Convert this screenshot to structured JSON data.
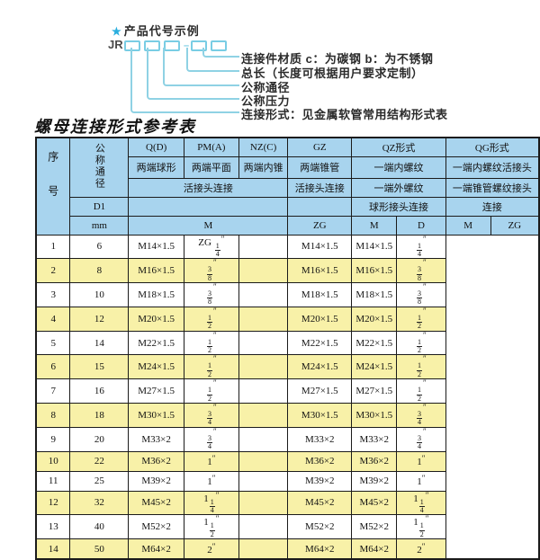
{
  "diagram": {
    "star": "★",
    "example_title": "产品代号示例",
    "prefix": "JR",
    "labels": [
      "连接件材质  c：为碳钢  b：为不锈钢",
      "总长（长度可根据用户要求定制）",
      "公称通径",
      "公称压力",
      "连接形式：见金属软管常用结构形式表"
    ]
  },
  "table": {
    "title": "螺母连接形式参考表",
    "header": {
      "seq": "序号",
      "dn": "公称通径",
      "d1": "D1",
      "mm": "mm",
      "col_q": "Q(D)",
      "col_pm": "PM(A)",
      "col_nz": "NZ(C)",
      "col_gz": "GZ",
      "col_qz": "QZ形式",
      "col_qg": "QG形式",
      "q_desc": "两端球形",
      "pm_desc": "两端平面",
      "nz_desc": "两端内锥",
      "gz_desc": "两端锥管",
      "qz_desc1": "一端内螺纹",
      "qg_desc1": "一端内螺纹活接头",
      "union_desc": "活接头连接",
      "gz_union_desc": "活接头连接",
      "qz_desc2": "一端外螺纹",
      "qg_desc2": "一端锥管螺纹接头",
      "qz_desc3": "球形接头连接",
      "qg_desc3": "连接",
      "m_label": "M",
      "zg_label": "ZG",
      "qz_m_label": "M",
      "qz_d_label": "D",
      "qg_m_label": "M",
      "qg_zg_label": "ZG"
    },
    "rows": [
      {
        "seq": "1",
        "dn": "6",
        "m": "M14×1.5",
        "gz": "ZG {1/4}″",
        "qz_m": "",
        "qz_d": "M14×1.5",
        "qg_m": "M14×1.5",
        "qg_zg": "{1/4}″"
      },
      {
        "seq": "2",
        "dn": "8",
        "m": "M16×1.5",
        "gz": "{3/8}″",
        "qz_m": "",
        "qz_d": "M16×1.5",
        "qg_m": "M16×1.5",
        "qg_zg": "{3/8}″"
      },
      {
        "seq": "3",
        "dn": "10",
        "m": "M18×1.5",
        "gz": "{3/8}″",
        "qz_m": "",
        "qz_d": "M18×1.5",
        "qg_m": "M18×1.5",
        "qg_zg": "{3/8}″"
      },
      {
        "seq": "4",
        "dn": "12",
        "m": "M20×1.5",
        "gz": "{1/2}″",
        "qz_m": "",
        "qz_d": "M20×1.5",
        "qg_m": "M20×1.5",
        "qg_zg": "{1/2}″"
      },
      {
        "seq": "5",
        "dn": "14",
        "m": "M22×1.5",
        "gz": "{1/2}″",
        "qz_m": "",
        "qz_d": "M22×1.5",
        "qg_m": "M22×1.5",
        "qg_zg": "{1/2}″"
      },
      {
        "seq": "6",
        "dn": "15",
        "m": "M24×1.5",
        "gz": "{1/2}″",
        "qz_m": "",
        "qz_d": "M24×1.5",
        "qg_m": "M24×1.5",
        "qg_zg": "{1/2}″"
      },
      {
        "seq": "7",
        "dn": "16",
        "m": "M27×1.5",
        "gz": "{1/2}″",
        "qz_m": "",
        "qz_d": "M27×1.5",
        "qg_m": "M27×1.5",
        "qg_zg": "{1/2}″"
      },
      {
        "seq": "8",
        "dn": "18",
        "m": "M30×1.5",
        "gz": "{3/4}″",
        "qz_m": "",
        "qz_d": "M30×1.5",
        "qg_m": "M30×1.5",
        "qg_zg": "{3/4}″"
      },
      {
        "seq": "9",
        "dn": "20",
        "m": "M33×2",
        "gz": "{3/4}″",
        "qz_m": "",
        "qz_d": "M33×2",
        "qg_m": "M33×2",
        "qg_zg": "{3/4}″"
      },
      {
        "seq": "10",
        "dn": "22",
        "m": "M36×2",
        "gz": "1″",
        "qz_m": "",
        "qz_d": "M36×2",
        "qg_m": "M36×2",
        "qg_zg": "1″"
      },
      {
        "seq": "11",
        "dn": "25",
        "m": "M39×2",
        "gz": "1″",
        "qz_m": "",
        "qz_d": "M39×2",
        "qg_m": "M39×2",
        "qg_zg": "1″"
      },
      {
        "seq": "12",
        "dn": "32",
        "m": "M45×2",
        "gz": "1{1/4}″",
        "qz_m": "",
        "qz_d": "M45×2",
        "qg_m": "M45×2",
        "qg_zg": "1{1/4}″"
      },
      {
        "seq": "13",
        "dn": "40",
        "m": "M52×2",
        "gz": "1{1/2}″",
        "qz_m": "",
        "qz_d": "M52×2",
        "qg_m": "M52×2",
        "qg_zg": "1{1/2}″"
      },
      {
        "seq": "14",
        "dn": "50",
        "m": "M64×2",
        "gz": "2″",
        "qz_m": "",
        "qz_d": "M64×2",
        "qg_m": "M64×2",
        "qg_zg": "2″"
      }
    ]
  },
  "colors": {
    "header_bg": "#a8d4ee",
    "alt_row_bg": "#f8f1a8",
    "line_cyan": "#8fd2e4",
    "star_cyan": "#2aaede",
    "border": "#1b1b1b"
  }
}
